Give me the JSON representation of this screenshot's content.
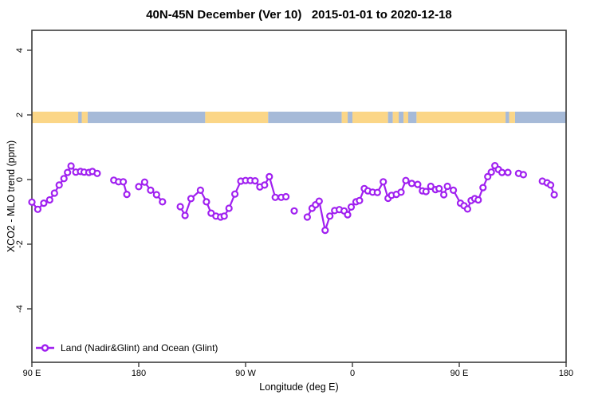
{
  "title": "40N-45N December (Ver 10)   2015-01-01 to 2020-12-18",
  "legend": {
    "label": "Land (Nadir&Glint) and Ocean (Glint)"
  },
  "colors": {
    "series": "#A020F0",
    "marker_fill": "#FFFFFF",
    "land": "#FBD687",
    "ocean": "#A6BAD8",
    "axis": "#3C3C3C",
    "text": "#000000",
    "background": "#FFFFFF"
  },
  "chart_data": {
    "type": "line",
    "title": "40N-45N December (Ver 10)   2015-01-01 to 2020-12-18",
    "xlabel": "Longitude (deg E)",
    "ylabel": "XCO2 - MLO trend (ppm)",
    "grid": false,
    "legend_position": "bottom-left",
    "xlim": [
      90,
      540
    ],
    "ylim": [
      -5.65,
      4.62
    ],
    "x_ticks": [
      {
        "lon": 90,
        "label": "90 E"
      },
      {
        "lon": 180,
        "label": "180"
      },
      {
        "lon": 270,
        "label": "90 W"
      },
      {
        "lon": 360,
        "label": "0"
      },
      {
        "lon": 450,
        "label": "90 E"
      },
      {
        "lon": 540,
        "label": "180"
      }
    ],
    "y_ticks": [
      {
        "value": -4,
        "label": "-4"
      },
      {
        "value": -2,
        "label": "-2"
      },
      {
        "value": 0,
        "label": "0"
      },
      {
        "value": 2,
        "label": "2"
      },
      {
        "value": 4,
        "label": "4"
      }
    ],
    "map_strip": {
      "band_value_range": [
        1.75,
        2.1
      ],
      "segments": [
        {
          "from": 90,
          "to": 129,
          "type": "land"
        },
        {
          "from": 129,
          "to": 132,
          "type": "ocean"
        },
        {
          "from": 132,
          "to": 137,
          "type": "land"
        },
        {
          "from": 137,
          "to": 236,
          "type": "ocean"
        },
        {
          "from": 236,
          "to": 289,
          "type": "land"
        },
        {
          "from": 289,
          "to": 351,
          "type": "ocean"
        },
        {
          "from": 351,
          "to": 356,
          "type": "land"
        },
        {
          "from": 356,
          "to": 360,
          "type": "ocean"
        },
        {
          "from": 360,
          "to": 390,
          "type": "land"
        },
        {
          "from": 390,
          "to": 394,
          "type": "ocean"
        },
        {
          "from": 394,
          "to": 399,
          "type": "land"
        },
        {
          "from": 399,
          "to": 403,
          "type": "ocean"
        },
        {
          "from": 403,
          "to": 407,
          "type": "land"
        },
        {
          "from": 407,
          "to": 414,
          "type": "ocean"
        },
        {
          "from": 414,
          "to": 489,
          "type": "land"
        },
        {
          "from": 489,
          "to": 492,
          "type": "ocean"
        },
        {
          "from": 492,
          "to": 497,
          "type": "land"
        },
        {
          "from": 497,
          "to": 540,
          "type": "ocean"
        }
      ]
    },
    "series": [
      {
        "name": "Land (Nadir&Glint) and Ocean (Glint)",
        "marker": "open-circle",
        "segments": [
          [
            [
              90,
              -0.7
            ],
            [
              95,
              -0.92
            ],
            [
              100,
              -0.73
            ],
            [
              105,
              -0.63
            ],
            [
              109,
              -0.42
            ],
            [
              113,
              -0.17
            ],
            [
              117,
              0.03
            ],
            [
              120,
              0.22
            ],
            [
              123,
              0.42
            ],
            [
              127,
              0.23
            ],
            [
              131,
              0.25
            ],
            [
              134,
              0.23
            ],
            [
              138,
              0.22
            ],
            [
              141,
              0.25
            ],
            [
              145,
              0.19
            ]
          ],
          [
            [
              159,
              -0.02
            ],
            [
              163,
              -0.07
            ],
            [
              167,
              -0.07
            ],
            [
              170,
              -0.46
            ]
          ],
          [
            [
              180,
              -0.22
            ],
            [
              185,
              -0.08
            ],
            [
              190,
              -0.33
            ],
            [
              195,
              -0.47
            ],
            [
              200,
              -0.69
            ]
          ],
          [
            [
              215,
              -0.84
            ],
            [
              219,
              -1.11
            ],
            [
              224,
              -0.59
            ],
            [
              232,
              -0.33
            ],
            [
              237,
              -0.69
            ],
            [
              241,
              -1.04
            ],
            [
              245,
              -1.13
            ],
            [
              249,
              -1.16
            ],
            [
              252,
              -1.13
            ],
            [
              256,
              -0.89
            ],
            [
              261,
              -0.45
            ],
            [
              266,
              -0.05
            ],
            [
              270,
              -0.03
            ],
            [
              274,
              -0.03
            ],
            [
              278,
              -0.04
            ],
            [
              282,
              -0.23
            ],
            [
              286,
              -0.17
            ],
            [
              290,
              0.09
            ],
            [
              295,
              -0.55
            ],
            [
              300,
              -0.55
            ],
            [
              304,
              -0.53
            ]
          ],
          [
            [
              311,
              -0.97
            ]
          ],
          [
            [
              322,
              -1.16
            ],
            [
              326,
              -0.89
            ],
            [
              329,
              -0.78
            ],
            [
              332,
              -0.67
            ],
            [
              337,
              -1.57
            ],
            [
              341,
              -1.13
            ],
            [
              345,
              -0.96
            ],
            [
              349,
              -0.93
            ],
            [
              353,
              -0.97
            ],
            [
              356,
              -1.09
            ],
            [
              359,
              -0.85
            ],
            [
              363,
              -0.69
            ],
            [
              366,
              -0.65
            ],
            [
              370,
              -0.28
            ],
            [
              373,
              -0.35
            ],
            [
              377,
              -0.39
            ],
            [
              381,
              -0.4
            ],
            [
              386,
              -0.07
            ],
            [
              390,
              -0.58
            ],
            [
              393,
              -0.49
            ],
            [
              397,
              -0.46
            ],
            [
              401,
              -0.39
            ],
            [
              405,
              -0.03
            ],
            [
              410,
              -0.12
            ],
            [
              415,
              -0.15
            ],
            [
              419,
              -0.35
            ],
            [
              422,
              -0.37
            ],
            [
              426,
              -0.21
            ],
            [
              430,
              -0.31
            ],
            [
              433,
              -0.28
            ],
            [
              437,
              -0.47
            ],
            [
              440,
              -0.21
            ],
            [
              445,
              -0.33
            ],
            [
              451,
              -0.73
            ],
            [
              454,
              -0.81
            ],
            [
              457,
              -0.91
            ],
            [
              460,
              -0.65
            ],
            [
              463,
              -0.59
            ],
            [
              466,
              -0.63
            ],
            [
              470,
              -0.25
            ],
            [
              474,
              0.09
            ],
            [
              477,
              0.23
            ],
            [
              480,
              0.43
            ],
            [
              483,
              0.31
            ],
            [
              486,
              0.22
            ],
            [
              491,
              0.22
            ]
          ],
          [
            [
              500,
              0.19
            ],
            [
              504,
              0.15
            ]
          ],
          [
            [
              520,
              -0.05
            ],
            [
              524,
              -0.1
            ],
            [
              527,
              -0.17
            ],
            [
              530,
              -0.47
            ]
          ]
        ]
      }
    ]
  }
}
